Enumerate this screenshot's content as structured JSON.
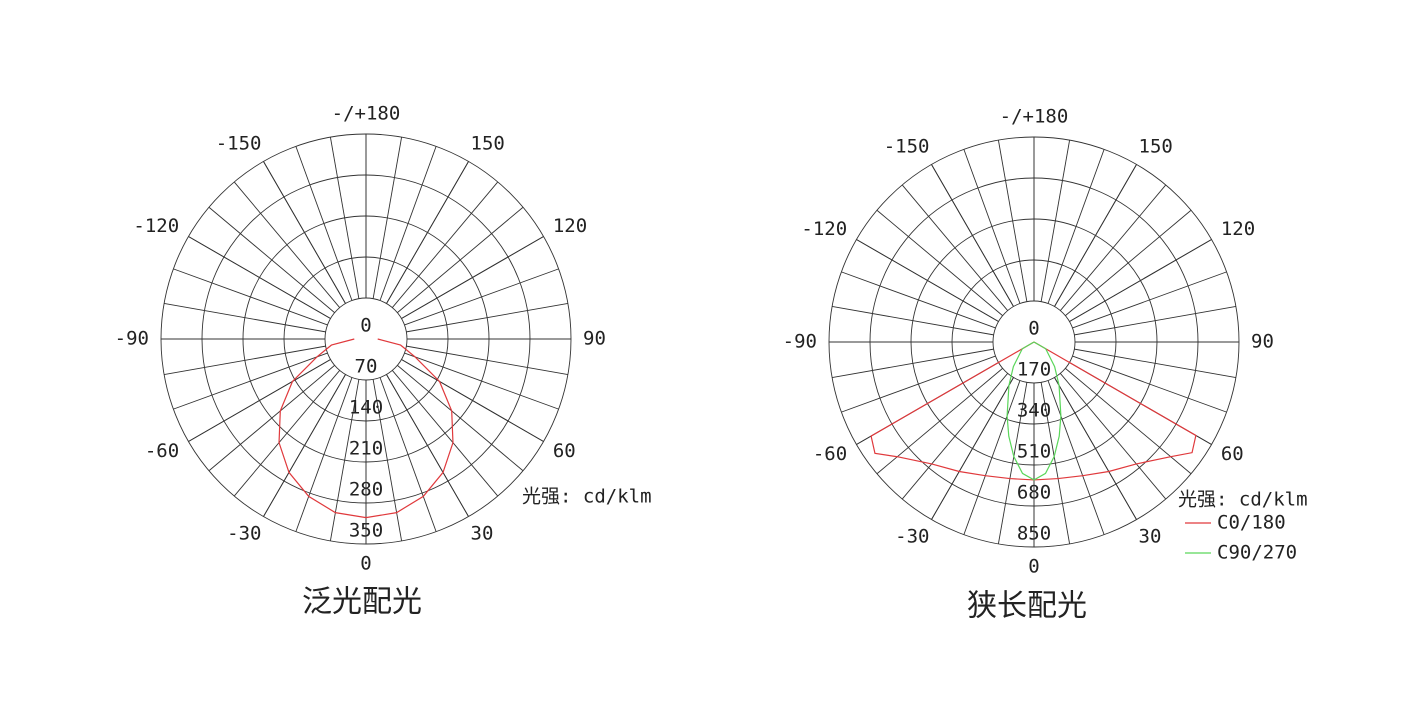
{
  "chart_data": [
    {
      "type": "polar",
      "title": "泛光配光",
      "unit_label": "光强: cd/klm",
      "xlim": [
        -180,
        180
      ],
      "xticks": [
        {
          "value": 180,
          "label": "-/+180"
        },
        -150,
        150,
        -120,
        120,
        -90,
        90,
        -60,
        60,
        -30,
        30,
        0
      ],
      "ylim": [
        0,
        350
      ],
      "yticks": [
        0,
        70,
        140,
        210,
        280,
        350
      ],
      "series": [
        {
          "color": "#e0393c",
          "x": [
            -90,
            -80,
            -70,
            -60,
            -50,
            -40,
            -30,
            -20,
            -10,
            0,
            10,
            20,
            30,
            40,
            50,
            60,
            70,
            80,
            90
          ],
          "values": [
            20,
            60,
            89,
            145,
            191,
            231,
            263,
            286,
            301,
            305,
            301,
            286,
            263,
            231,
            191,
            145,
            89,
            60,
            20
          ]
        }
      ]
    },
    {
      "type": "polar",
      "title": "狭长配光",
      "unit_label": "光强: cd/klm",
      "xlim": [
        -180,
        180
      ],
      "xticks": [
        {
          "value": 180,
          "label": "-/+180"
        },
        -150,
        150,
        -120,
        120,
        -90,
        90,
        -60,
        60,
        -30,
        30,
        0
      ],
      "ylim": [
        0,
        850
      ],
      "yticks": [
        0,
        170,
        340,
        510,
        680,
        850
      ],
      "series": [
        {
          "name": "C0/180",
          "color": "#e0393c",
          "x": [
            -65,
            -60,
            -55,
            -50,
            -40,
            -30,
            -20,
            -10,
            0,
            10,
            20,
            30,
            40,
            50,
            55,
            60,
            65
          ],
          "values": [
            0,
            780,
            805,
            740,
            660,
            620,
            590,
            575,
            572,
            575,
            590,
            620,
            660,
            740,
            800,
            775,
            0
          ]
        },
        {
          "name": "C90/270",
          "color": "#5ad65a",
          "x": [
            -90,
            -60,
            -40,
            -30,
            -20,
            -15,
            -10,
            -5,
            0,
            5,
            10,
            15,
            20,
            30,
            40,
            60,
            90
          ],
          "values": [
            0,
            56,
            133,
            208,
            326,
            404,
            482,
            547,
            572,
            547,
            482,
            404,
            326,
            208,
            133,
            56,
            0
          ]
        }
      ]
    }
  ]
}
